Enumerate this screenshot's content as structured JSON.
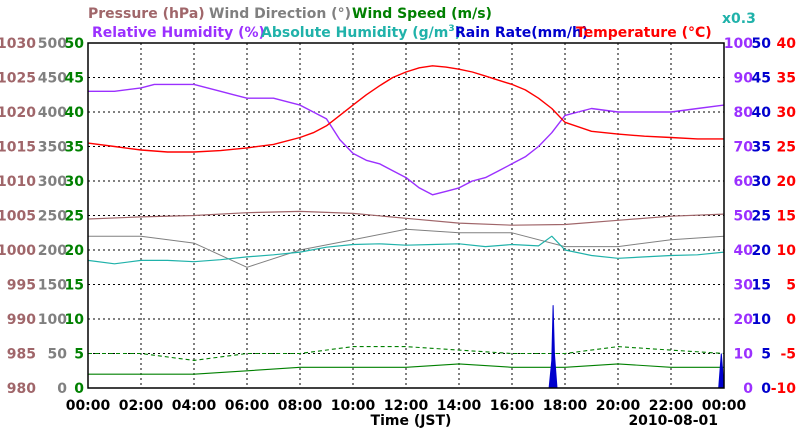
{
  "chart_data": {
    "type": "line",
    "date": "2010-08-01",
    "x_label": "Time (JST)",
    "x_ticks": [
      "00:00",
      "02:00",
      "04:00",
      "06:00",
      "08:00",
      "10:00",
      "12:00",
      "14:00",
      "16:00",
      "18:00",
      "20:00",
      "22:00",
      "00:00"
    ],
    "x_range_hours": [
      0,
      24
    ],
    "grid": true,
    "colors": {
      "pressure": "#a0666a",
      "wind_direction": "#808080",
      "wind_speed": "#008000",
      "relative_humidity": "#9b30ff",
      "absolute_humidity": "#20b2aa",
      "rain_rate": "#0000cd",
      "temperature": "#ff0000"
    },
    "legend": {
      "pressure": "Pressure (hPa)",
      "wind_direction": "Wind Direction (°)",
      "wind_speed": "Wind Speed (m/s)",
      "relative_humidity": "Relative Humidity (%)",
      "absolute_humidity": "Absolute Humidity (g/m",
      "absolute_humidity_sup": "3",
      "absolute_humidity_end": ")",
      "rain_rate": "Rain Rate(mm/h)",
      "temperature": "Temperature (°C)",
      "rain_scale": "x0.3"
    },
    "axes": {
      "pressure": {
        "ticks": [
          "1030",
          "1025",
          "1020",
          "1015",
          "1010",
          "1005",
          "1000",
          "995",
          "990",
          "985",
          "980"
        ],
        "range": [
          980,
          1030
        ]
      },
      "wind_direction": {
        "ticks": [
          "500",
          "450",
          "400",
          "350",
          "300",
          "250",
          "200",
          "150",
          "100",
          "50",
          "0"
        ],
        "range": [
          0,
          500
        ]
      },
      "wind_speed": {
        "ticks": [
          "50",
          "45",
          "40",
          "35",
          "30",
          "25",
          "20",
          "15",
          "10",
          "5",
          "0"
        ],
        "range": [
          0,
          50
        ]
      },
      "relative_humidity": {
        "ticks": [
          "100",
          "90",
          "80",
          "70",
          "60",
          "50",
          "40",
          "30",
          "20",
          "10",
          "0"
        ],
        "range": [
          0,
          100
        ]
      },
      "rain_rate": {
        "ticks": [
          "50",
          "45",
          "40",
          "35",
          "30",
          "25",
          "20",
          "15",
          "10",
          "5",
          "0"
        ],
        "range": [
          0,
          50
        ]
      },
      "temperature": {
        "ticks": [
          "40",
          "35",
          "30",
          "25",
          "20",
          "15",
          "10",
          "5",
          "0",
          "-5",
          "-10"
        ],
        "range": [
          -10,
          40
        ]
      }
    },
    "series": [
      {
        "key": "temperature",
        "x": [
          0,
          1,
          2,
          3,
          4,
          5,
          6,
          7,
          8,
          8.5,
          9,
          9.5,
          10,
          10.5,
          11,
          11.5,
          12,
          12.5,
          13,
          13.5,
          14,
          14.5,
          15,
          15.5,
          16,
          16.5,
          17,
          17.5,
          18,
          19,
          20,
          21,
          22,
          23,
          24
        ],
        "values": [
          25.5,
          25,
          24.5,
          24.2,
          24.2,
          24.4,
          24.8,
          25.3,
          26.3,
          27,
          28,
          29.5,
          31,
          32.5,
          33.8,
          35,
          35.8,
          36.4,
          36.7,
          36.5,
          36.2,
          35.8,
          35.2,
          34.6,
          34,
          33.2,
          32,
          30.5,
          28.5,
          27.2,
          26.8,
          26.5,
          26.3,
          26.1,
          26.1
        ]
      },
      {
        "key": "relative_humidity",
        "x": [
          0,
          1,
          2,
          2.5,
          3,
          4,
          5,
          5.5,
          6,
          7,
          8,
          8.5,
          9,
          9.5,
          10,
          10.5,
          11,
          11.5,
          12,
          12.5,
          13,
          13.5,
          14,
          14.5,
          15,
          15.5,
          16,
          16.5,
          17,
          17.5,
          18,
          19,
          20,
          21,
          22,
          23,
          24
        ],
        "values": [
          86,
          86,
          87,
          88,
          88,
          88,
          86,
          85,
          84,
          84,
          82,
          80,
          78,
          72,
          68,
          66,
          65,
          63,
          61,
          58,
          56,
          57,
          58,
          60,
          61,
          63,
          65,
          67,
          70,
          74,
          79,
          81,
          80,
          80,
          80,
          81,
          82
        ]
      },
      {
        "key": "absolute_humidity",
        "x": [
          0,
          1,
          2,
          3,
          4,
          5,
          6,
          7,
          8,
          9,
          10,
          11,
          12,
          13,
          14,
          15,
          16,
          17,
          17.5,
          18,
          19,
          20,
          21,
          22,
          23,
          24
        ],
        "values": [
          18.5,
          18,
          18.5,
          18.5,
          18.3,
          18.6,
          19,
          19.3,
          19.7,
          20.4,
          20.8,
          20.9,
          20.7,
          20.8,
          20.9,
          20.5,
          20.8,
          20.6,
          22,
          20,
          19.2,
          18.8,
          19,
          19.2,
          19.3,
          19.7
        ]
      },
      {
        "key": "pressure",
        "x": [
          0,
          2,
          4,
          6,
          8,
          10,
          12,
          14,
          16,
          18,
          20,
          22,
          24
        ],
        "values": [
          1004.5,
          1004.8,
          1005,
          1005.4,
          1005.6,
          1005.3,
          1004.6,
          1003.9,
          1003.6,
          1003.7,
          1004.3,
          1004.9,
          1005.2
        ]
      },
      {
        "key": "wind_speed_avg",
        "x": [
          0,
          2,
          4,
          6,
          8,
          10,
          12,
          14,
          16,
          18,
          20,
          22,
          24
        ],
        "values": [
          2,
          2,
          2,
          2.5,
          3,
          3,
          3,
          3.5,
          3,
          3,
          3.5,
          3,
          3
        ]
      },
      {
        "key": "wind_speed_max",
        "x": [
          0,
          2,
          4,
          6,
          8,
          10,
          12,
          14,
          16,
          18,
          20,
          22,
          24
        ],
        "values": [
          5,
          5,
          4,
          5,
          5,
          6,
          6,
          5.5,
          5,
          5,
          6,
          5.5,
          5
        ]
      },
      {
        "key": "wind_direction_avg",
        "x": [
          0,
          2,
          4,
          6,
          8,
          10,
          12,
          14,
          16,
          18,
          20,
          22,
          24
        ],
        "values": [
          220,
          220,
          210,
          175,
          200,
          215,
          230,
          225,
          225,
          205,
          205,
          215,
          220
        ]
      },
      {
        "key": "rain_rate",
        "x": [
          0,
          17.4,
          17.5,
          17.55,
          17.6,
          17.7,
          23.8,
          23.9,
          24
        ],
        "values": [
          0,
          0,
          4,
          12,
          5,
          0,
          0,
          5,
          0
        ]
      }
    ]
  }
}
